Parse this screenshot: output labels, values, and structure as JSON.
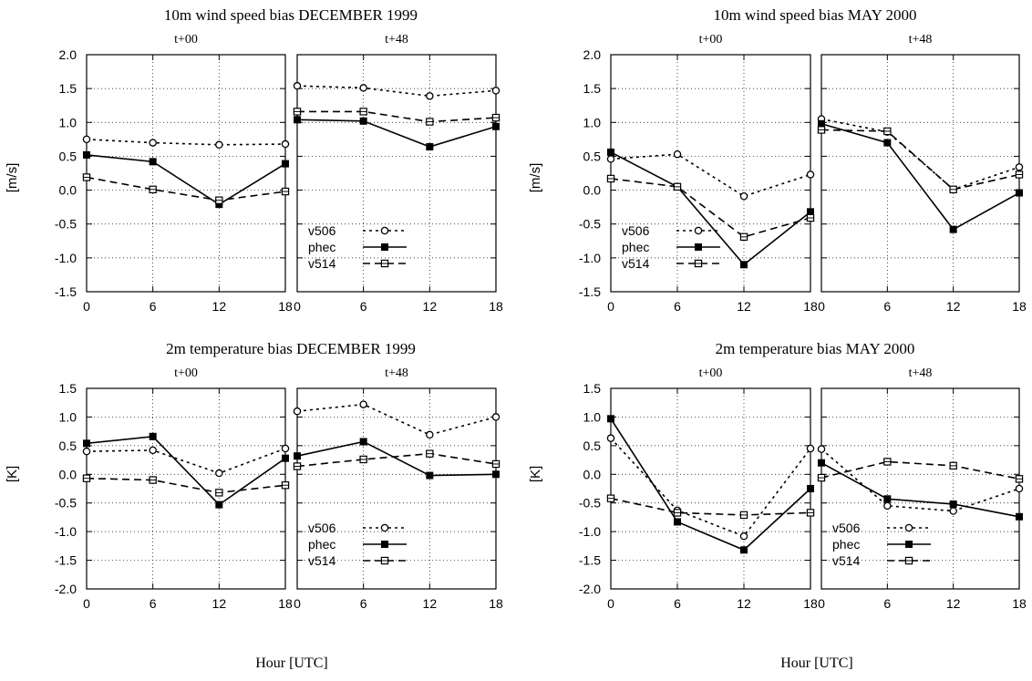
{
  "figure": {
    "xlabel": "Hour [UTC]",
    "legend": [
      "v506",
      "phec",
      "v514"
    ],
    "x_ticks": [
      0,
      6,
      12,
      18
    ]
  },
  "chart_data": [
    {
      "type": "line",
      "title": "10m wind speed bias DECEMBER 1999",
      "ylabel": "[m/s]",
      "xlabel": "Hour [UTC]",
      "ylim": [
        -1.5,
        2.0
      ],
      "yticks": [
        "2.0",
        "1.5",
        "1.0",
        "0.5",
        "0.0",
        "-0.5",
        "-1.0",
        "-1.5"
      ],
      "grid": true,
      "legend_position": "lower-left of right sub-panel",
      "panels": [
        {
          "subtitle": "t+00",
          "x": [
            0,
            6,
            12,
            18
          ],
          "series": [
            {
              "name": "v506",
              "values": [
                0.75,
                0.7,
                0.67,
                0.68
              ]
            },
            {
              "name": "phec",
              "values": [
                0.52,
                0.42,
                -0.21,
                0.39
              ]
            },
            {
              "name": "v514",
              "values": [
                0.19,
                0.01,
                -0.15,
                -0.02
              ]
            }
          ]
        },
        {
          "subtitle": "t+48",
          "x": [
            0,
            6,
            12,
            18
          ],
          "series": [
            {
              "name": "v506",
              "values": [
                1.54,
                1.51,
                1.39,
                1.47
              ]
            },
            {
              "name": "phec",
              "values": [
                1.04,
                1.02,
                0.64,
                0.94
              ]
            },
            {
              "name": "v514",
              "values": [
                1.16,
                1.16,
                1.01,
                1.07
              ]
            }
          ]
        }
      ]
    },
    {
      "type": "line",
      "title": "10m wind speed bias MAY 2000",
      "ylabel": "[m/s]",
      "xlabel": "Hour [UTC]",
      "ylim": [
        -1.5,
        2.0
      ],
      "yticks": [
        "2.0",
        "1.5",
        "1.0",
        "0.5",
        "0.0",
        "-0.5",
        "-1.0",
        "-1.5"
      ],
      "grid": true,
      "legend_position": "lower-left of left sub-panel",
      "panels": [
        {
          "subtitle": "t+00",
          "x": [
            0,
            6,
            12,
            18
          ],
          "series": [
            {
              "name": "v506",
              "values": [
                0.46,
                0.53,
                -0.09,
                0.23
              ]
            },
            {
              "name": "phec",
              "values": [
                0.56,
                0.05,
                -1.1,
                -0.32
              ]
            },
            {
              "name": "v514",
              "values": [
                0.17,
                0.05,
                -0.69,
                -0.41
              ]
            }
          ]
        },
        {
          "subtitle": "t+48",
          "x": [
            0,
            6,
            12,
            18
          ],
          "series": [
            {
              "name": "v506",
              "values": [
                1.05,
                0.86,
                0.01,
                0.34
              ]
            },
            {
              "name": "phec",
              "values": [
                0.98,
                0.7,
                -0.58,
                -0.04
              ]
            },
            {
              "name": "v514",
              "values": [
                0.89,
                0.87,
                0.01,
                0.23
              ]
            }
          ]
        }
      ]
    },
    {
      "type": "line",
      "title": "2m temperature bias DECEMBER 1999",
      "ylabel": "[K]",
      "xlabel": "Hour [UTC]",
      "ylim": [
        -2.0,
        1.5
      ],
      "yticks": [
        "1.5",
        "1.0",
        "0.5",
        "0.0",
        "-0.5",
        "-1.0",
        "-1.5",
        "-2.0"
      ],
      "grid": true,
      "legend_position": "lower-left of right sub-panel",
      "panels": [
        {
          "subtitle": "t+00",
          "x": [
            0,
            6,
            12,
            18
          ],
          "series": [
            {
              "name": "v506",
              "values": [
                0.4,
                0.42,
                0.02,
                0.45
              ]
            },
            {
              "name": "phec",
              "values": [
                0.54,
                0.66,
                -0.53,
                0.28
              ]
            },
            {
              "name": "v514",
              "values": [
                -0.07,
                -0.1,
                -0.32,
                -0.19
              ]
            }
          ]
        },
        {
          "subtitle": "t+48",
          "x": [
            0,
            6,
            12,
            18
          ],
          "series": [
            {
              "name": "v506",
              "values": [
                1.1,
                1.22,
                0.69,
                1.0
              ]
            },
            {
              "name": "phec",
              "values": [
                0.32,
                0.57,
                -0.02,
                0.0
              ]
            },
            {
              "name": "v514",
              "values": [
                0.14,
                0.26,
                0.36,
                0.18
              ]
            }
          ]
        }
      ]
    },
    {
      "type": "line",
      "title": "2m temperature bias MAY 2000",
      "ylabel": "[K]",
      "xlabel": "Hour [UTC]",
      "ylim": [
        -2.0,
        1.5
      ],
      "yticks": [
        "1.5",
        "1.0",
        "0.5",
        "0.0",
        "-0.5",
        "-1.0",
        "-1.5",
        "-2.0"
      ],
      "grid": true,
      "legend_position": "lower-left of right sub-panel",
      "panels": [
        {
          "subtitle": "t+00",
          "x": [
            0,
            6,
            12,
            18
          ],
          "series": [
            {
              "name": "v506",
              "values": [
                0.63,
                -0.63,
                -1.08,
                0.45
              ]
            },
            {
              "name": "phec",
              "values": [
                0.97,
                -0.83,
                -1.32,
                -0.25
              ]
            },
            {
              "name": "v514",
              "values": [
                -0.42,
                -0.67,
                -0.71,
                -0.67
              ]
            }
          ]
        },
        {
          "subtitle": "t+48",
          "x": [
            0,
            6,
            12,
            18
          ],
          "series": [
            {
              "name": "v506",
              "values": [
                0.44,
                -0.55,
                -0.64,
                -0.25
              ]
            },
            {
              "name": "phec",
              "values": [
                0.2,
                -0.43,
                -0.52,
                -0.74
              ]
            },
            {
              "name": "v514",
              "values": [
                -0.06,
                0.22,
                0.15,
                -0.08
              ]
            }
          ]
        }
      ]
    }
  ]
}
